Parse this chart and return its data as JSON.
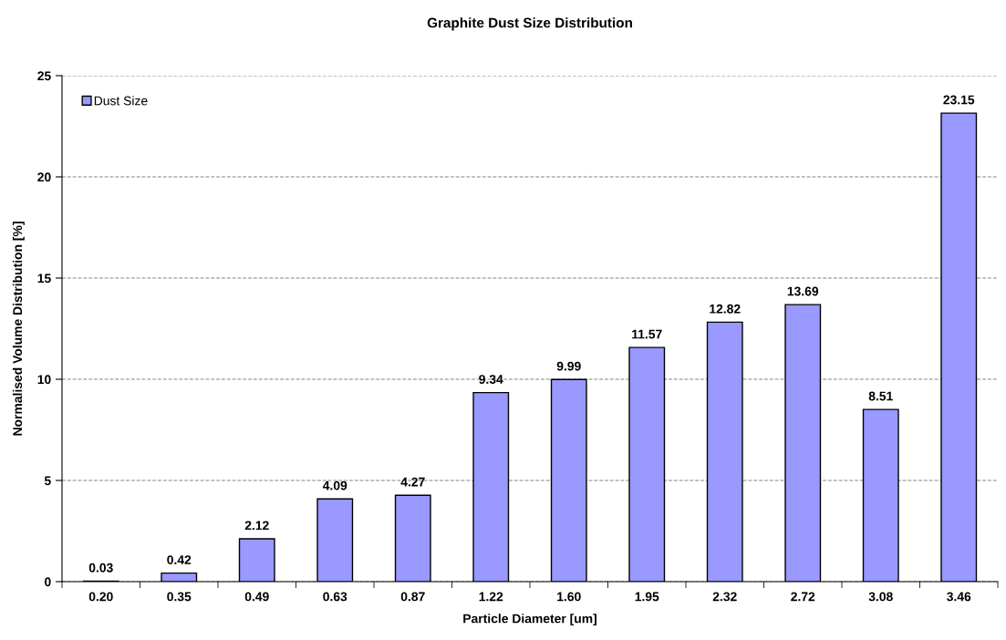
{
  "chart_data": {
    "type": "bar",
    "title": "Graphite Dust Size Distribution",
    "xlabel": "Particle Diameter [um]",
    "ylabel": "Normalised Volume Distribution [%]",
    "categories": [
      "0.20",
      "0.35",
      "0.49",
      "0.63",
      "0.87",
      "1.22",
      "1.60",
      "1.95",
      "2.32",
      "2.72",
      "3.08",
      "3.46"
    ],
    "series": [
      {
        "name": "Dust Size",
        "color": "#9999ff",
        "values": [
          0.03,
          0.42,
          2.12,
          4.09,
          4.27,
          9.34,
          9.99,
          11.57,
          12.82,
          13.69,
          8.51,
          23.15
        ]
      }
    ],
    "ylim": [
      0,
      25
    ],
    "yticks": [
      0,
      5,
      10,
      15,
      20,
      25
    ],
    "grid": "y",
    "legend": "top left",
    "data_labels": true
  }
}
